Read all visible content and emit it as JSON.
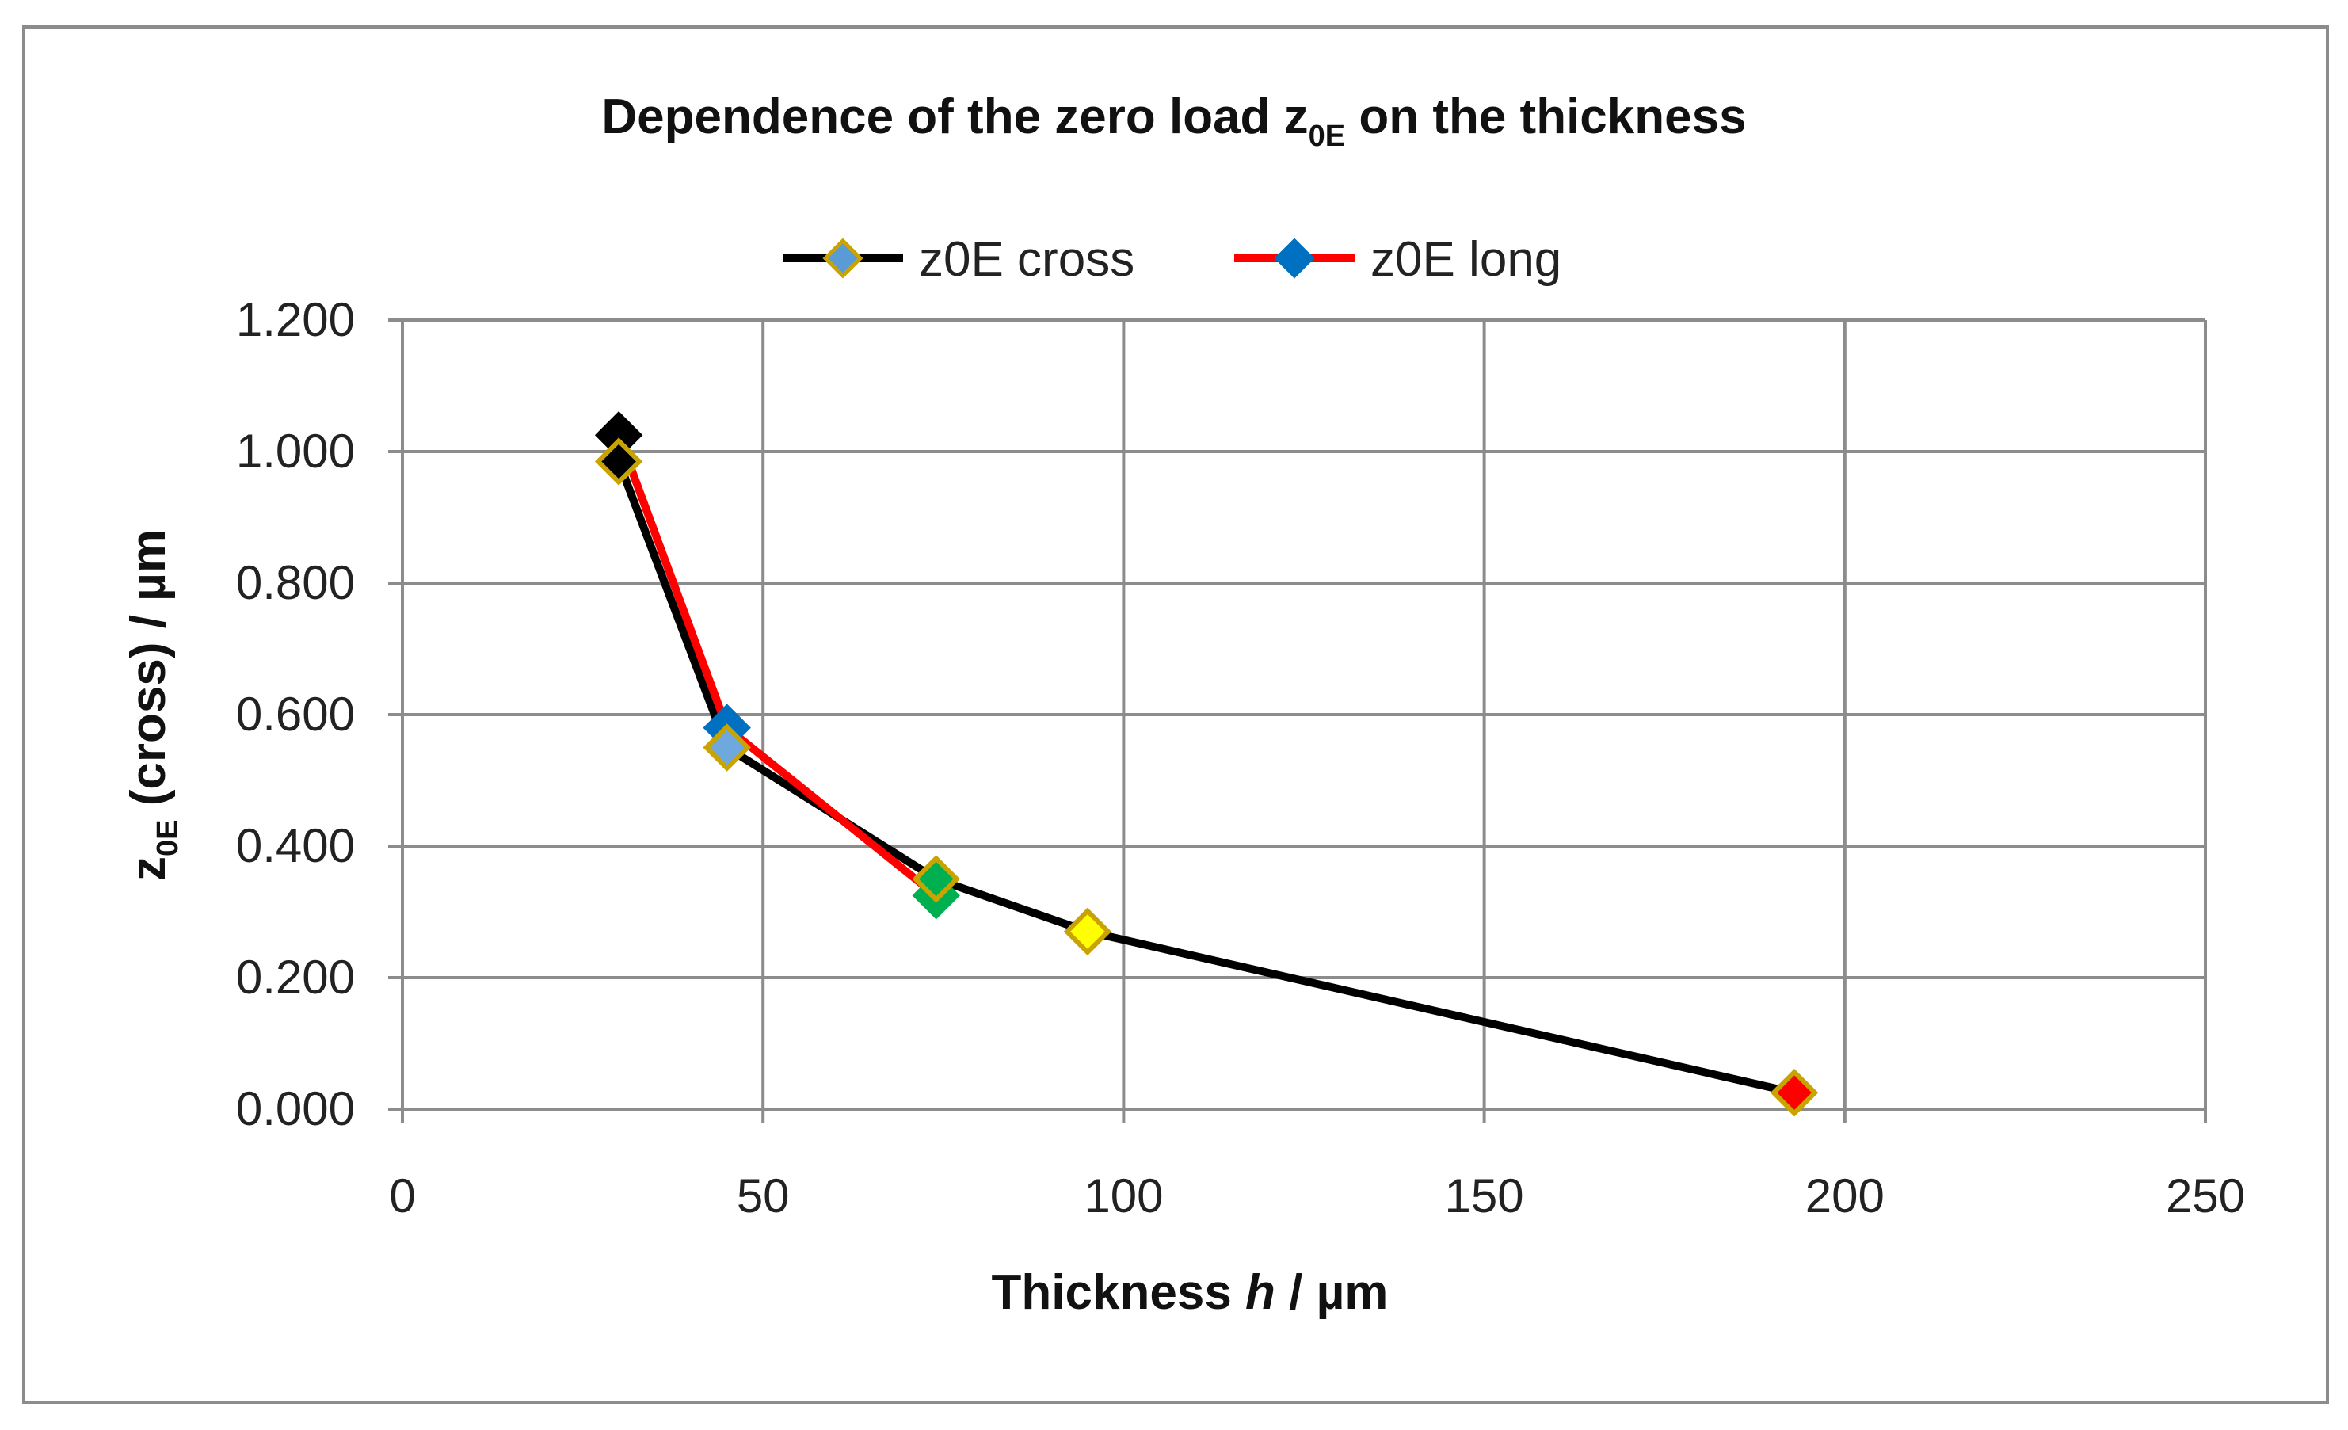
{
  "chart_data": {
    "type": "line",
    "title": {
      "prefix": "Dependence of the zero load z",
      "subscript": "0E",
      "suffix": " on the thickness"
    },
    "xlabel": {
      "prefix": "Thickness ",
      "italic": "h",
      "suffix": " / µm"
    },
    "ylabel": {
      "prefix": "z",
      "subscript": "0E",
      "suffix": " (cross) / µm"
    },
    "xlim": [
      0,
      250
    ],
    "ylim": [
      0,
      1.2
    ],
    "xticks": [
      0,
      50,
      100,
      150,
      200,
      250
    ],
    "xtick_labels": [
      "0",
      "50",
      "100",
      "150",
      "200",
      "250"
    ],
    "yticks": [
      0,
      0.2,
      0.4,
      0.6,
      0.8,
      1.0,
      1.2
    ],
    "ytick_labels": [
      "0.000",
      "0.200",
      "0.400",
      "0.600",
      "0.800",
      "1.000",
      "1.200"
    ],
    "grid": true,
    "legend_position": "top-center",
    "series": [
      {
        "name": "z0E cross",
        "line_color": "#000000",
        "legend_marker_color": "#5b9bd5",
        "points": [
          {
            "x": 30,
            "y": 0.985,
            "marker": "#000000",
            "border": "#c9a400"
          },
          {
            "x": 45,
            "y": 0.55,
            "marker": "#6fa8dc",
            "border": "#c9a400"
          },
          {
            "x": 74,
            "y": 0.35,
            "marker": "#00b050",
            "border": "#c9a400"
          },
          {
            "x": 95,
            "y": 0.27,
            "marker": "#ffff00",
            "border": "#c9a400"
          },
          {
            "x": 193,
            "y": 0.025,
            "marker": "#ff0000",
            "border": "#c9a400"
          }
        ]
      },
      {
        "name": "z0E long",
        "line_color": "#ff0000",
        "legend_marker_color": "#0070c0",
        "points": [
          {
            "x": 30,
            "y": 1.025,
            "marker": "#000000",
            "border": "#000000"
          },
          {
            "x": 45,
            "y": 0.58,
            "marker": "#0070c0",
            "border": "#0070c0"
          },
          {
            "x": 74,
            "y": 0.325,
            "marker": "#00b050",
            "border": "#00b050"
          }
        ]
      }
    ]
  }
}
